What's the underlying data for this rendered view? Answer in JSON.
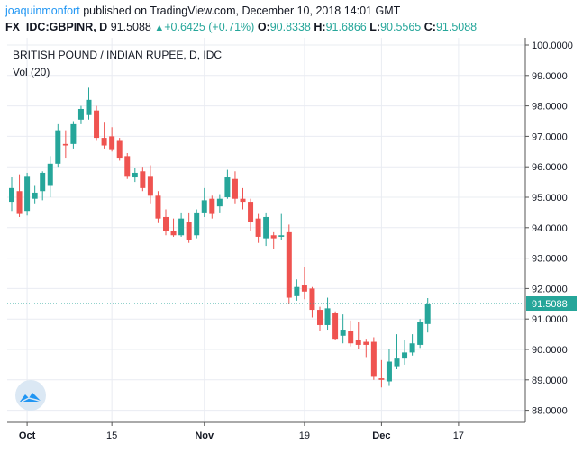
{
  "header": {
    "author": "joaquinmonfort",
    "published_text": "published on TradingView.com, December 10, 2018 14:01 GMT",
    "symbol": "FX_IDC:GBPINR, D",
    "last_price": "91.5088",
    "change_arrow": "▲",
    "change": "+0.6425 (+0.71%)",
    "open_label": "O:",
    "open": "90.8338",
    "high_label": "H:",
    "high": "91.6866",
    "low_label": "L:",
    "low": "90.5565",
    "close_label": "C:",
    "close": "91.5088"
  },
  "pane": {
    "title": "BRITISH POUND / INDIAN RUPEE, D, IDC",
    "volume_label": "Vol (20)",
    "logo_icon": "tradingview-cloud-icon"
  },
  "colors": {
    "up": "#26a69a",
    "down": "#ef5350",
    "grid": "#e9ecf2",
    "axis": "#555555",
    "price_line": "#26a69a",
    "logo_bg": "#dbe8f4",
    "logo_fg": "#2196f3"
  },
  "chart_data": {
    "type": "candlestick",
    "title": "BRITISH POUND / INDIAN RUPEE, D, IDC",
    "ylim": [
      87.5,
      100.2
    ],
    "y_ticks": [
      "100.0000",
      "99.0000",
      "98.0000",
      "97.0000",
      "96.0000",
      "95.0000",
      "94.0000",
      "93.0000",
      "92.0000",
      "91.0000",
      "90.0000",
      "89.0000",
      "88.0000"
    ],
    "x_ticks": [
      {
        "label": "Oct",
        "index": 2,
        "bold": true
      },
      {
        "label": "15",
        "index": 13,
        "bold": false
      },
      {
        "label": "Nov",
        "index": 25,
        "bold": true
      },
      {
        "label": "19",
        "index": 38,
        "bold": false
      },
      {
        "label": "Dec",
        "index": 48,
        "bold": true
      },
      {
        "label": "17",
        "index": 58,
        "bold": false
      }
    ],
    "current_price": 91.5088,
    "current_price_label": "91.5088",
    "grid": true,
    "candles": [
      {
        "o": 94.85,
        "h": 95.65,
        "l": 94.55,
        "c": 95.3
      },
      {
        "o": 95.2,
        "h": 95.75,
        "l": 94.35,
        "c": 94.45
      },
      {
        "o": 94.55,
        "h": 95.8,
        "l": 94.4,
        "c": 95.7
      },
      {
        "o": 94.95,
        "h": 95.4,
        "l": 94.8,
        "c": 95.15
      },
      {
        "o": 95.2,
        "h": 95.85,
        "l": 94.9,
        "c": 95.8
      },
      {
        "o": 95.4,
        "h": 96.35,
        "l": 95.0,
        "c": 96.1
      },
      {
        "o": 96.1,
        "h": 97.4,
        "l": 96.0,
        "c": 97.2
      },
      {
        "o": 96.75,
        "h": 97.2,
        "l": 96.3,
        "c": 96.7
      },
      {
        "o": 96.75,
        "h": 97.5,
        "l": 96.6,
        "c": 97.4
      },
      {
        "o": 97.55,
        "h": 98.0,
        "l": 97.4,
        "c": 97.9
      },
      {
        "o": 97.7,
        "h": 98.6,
        "l": 97.55,
        "c": 98.2
      },
      {
        "o": 97.85,
        "h": 98.0,
        "l": 96.85,
        "c": 96.95
      },
      {
        "o": 96.95,
        "h": 97.45,
        "l": 96.6,
        "c": 96.7
      },
      {
        "o": 97.0,
        "h": 97.3,
        "l": 96.5,
        "c": 96.55
      },
      {
        "o": 96.85,
        "h": 96.95,
        "l": 96.2,
        "c": 96.3
      },
      {
        "o": 96.35,
        "h": 96.45,
        "l": 95.6,
        "c": 95.7
      },
      {
        "o": 95.65,
        "h": 95.95,
        "l": 95.5,
        "c": 95.8
      },
      {
        "o": 95.85,
        "h": 96.0,
        "l": 95.2,
        "c": 95.3
      },
      {
        "o": 95.7,
        "h": 96.05,
        "l": 94.8,
        "c": 95.05
      },
      {
        "o": 95.05,
        "h": 95.2,
        "l": 94.15,
        "c": 94.3
      },
      {
        "o": 94.35,
        "h": 94.6,
        "l": 93.75,
        "c": 93.9
      },
      {
        "o": 93.9,
        "h": 94.3,
        "l": 93.7,
        "c": 93.75
      },
      {
        "o": 93.75,
        "h": 94.5,
        "l": 93.7,
        "c": 94.3
      },
      {
        "o": 94.2,
        "h": 94.5,
        "l": 93.5,
        "c": 93.6
      },
      {
        "o": 93.75,
        "h": 94.6,
        "l": 93.65,
        "c": 94.5
      },
      {
        "o": 94.5,
        "h": 95.3,
        "l": 94.35,
        "c": 94.9
      },
      {
        "o": 94.95,
        "h": 95.05,
        "l": 94.3,
        "c": 94.45
      },
      {
        "o": 94.7,
        "h": 95.1,
        "l": 94.5,
        "c": 94.95
      },
      {
        "o": 95.0,
        "h": 95.9,
        "l": 94.95,
        "c": 95.65
      },
      {
        "o": 95.6,
        "h": 95.85,
        "l": 94.8,
        "c": 94.95
      },
      {
        "o": 94.95,
        "h": 95.3,
        "l": 94.6,
        "c": 94.85
      },
      {
        "o": 94.85,
        "h": 94.95,
        "l": 93.9,
        "c": 94.2
      },
      {
        "o": 94.3,
        "h": 94.45,
        "l": 93.5,
        "c": 93.7
      },
      {
        "o": 93.65,
        "h": 94.5,
        "l": 93.4,
        "c": 94.35
      },
      {
        "o": 93.75,
        "h": 93.85,
        "l": 93.3,
        "c": 93.65
      },
      {
        "o": 93.7,
        "h": 94.45,
        "l": 93.6,
        "c": 93.75
      },
      {
        "o": 93.85,
        "h": 94.1,
        "l": 91.5,
        "c": 91.7
      },
      {
        "o": 91.75,
        "h": 92.3,
        "l": 91.6,
        "c": 92.05
      },
      {
        "o": 92.1,
        "h": 92.7,
        "l": 91.65,
        "c": 91.9
      },
      {
        "o": 92.0,
        "h": 92.05,
        "l": 91.05,
        "c": 91.3
      },
      {
        "o": 91.3,
        "h": 91.4,
        "l": 90.6,
        "c": 90.8
      },
      {
        "o": 90.8,
        "h": 91.7,
        "l": 90.65,
        "c": 91.35
      },
      {
        "o": 91.2,
        "h": 91.25,
        "l": 90.3,
        "c": 90.35
      },
      {
        "o": 90.45,
        "h": 91.15,
        "l": 90.2,
        "c": 90.65
      },
      {
        "o": 90.6,
        "h": 90.95,
        "l": 90.1,
        "c": 90.2
      },
      {
        "o": 90.3,
        "h": 90.9,
        "l": 90.0,
        "c": 90.15
      },
      {
        "o": 90.25,
        "h": 90.35,
        "l": 89.75,
        "c": 90.15
      },
      {
        "o": 90.25,
        "h": 90.4,
        "l": 89.0,
        "c": 89.1
      },
      {
        "o": 89.05,
        "h": 89.65,
        "l": 88.75,
        "c": 89.0
      },
      {
        "o": 88.95,
        "h": 90.0,
        "l": 88.8,
        "c": 89.6
      },
      {
        "o": 89.45,
        "h": 90.5,
        "l": 89.35,
        "c": 89.7
      },
      {
        "o": 89.7,
        "h": 90.3,
        "l": 89.5,
        "c": 89.9
      },
      {
        "o": 89.9,
        "h": 90.5,
        "l": 89.8,
        "c": 90.2
      },
      {
        "o": 90.15,
        "h": 91.0,
        "l": 90.05,
        "c": 90.9
      },
      {
        "o": 90.8338,
        "h": 91.6866,
        "l": 90.5565,
        "c": 91.5088
      }
    ]
  }
}
